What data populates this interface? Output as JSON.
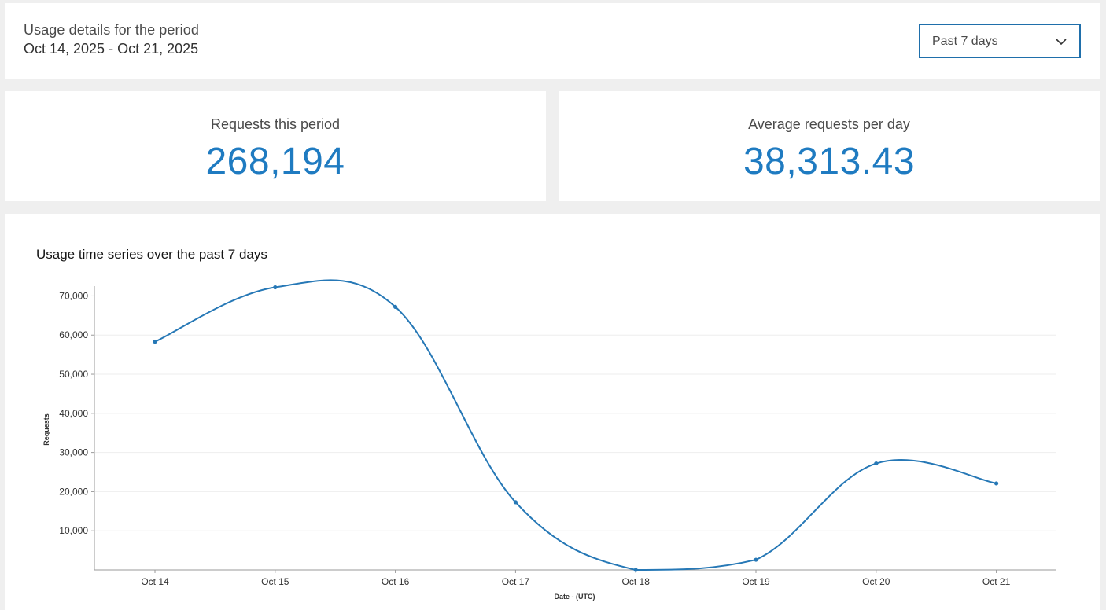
{
  "header": {
    "period_label": "Usage details for the period",
    "period_range": "Oct 14, 2025 - Oct 21, 2025",
    "period_select": {
      "selected": "Past 7 days",
      "icon": "chevron-down-icon"
    }
  },
  "stats": {
    "requests": {
      "label": "Requests this period",
      "value": "268,194"
    },
    "average": {
      "label": "Average requests per day",
      "value": "38,313.43"
    }
  },
  "chart": {
    "title": "Usage time series over the past 7 days"
  },
  "colors": {
    "accent": "#1f7bc1",
    "line": "#2678b6",
    "select_border": "#1f6fab",
    "background": "#efefef",
    "card": "#ffffff"
  },
  "chart_data": {
    "type": "line",
    "title": "Usage time series over the past 7 days",
    "xlabel": "Date - (UTC)",
    "ylabel": "Requests",
    "categories": [
      "Oct 14",
      "Oct 15",
      "Oct 16",
      "Oct 17",
      "Oct 18",
      "Oct 19",
      "Oct 20",
      "Oct 21"
    ],
    "values": [
      58300,
      72200,
      67200,
      17300,
      0,
      2600,
      27200,
      22100
    ],
    "yticks": [
      10000,
      20000,
      30000,
      40000,
      50000,
      60000,
      70000
    ],
    "ytick_labels": [
      "10,000",
      "20,000",
      "30,000",
      "40,000",
      "50,000",
      "60,000",
      "70,000"
    ],
    "ylim": [
      0,
      72500
    ],
    "grid": true,
    "smooth": true,
    "markers": true
  }
}
